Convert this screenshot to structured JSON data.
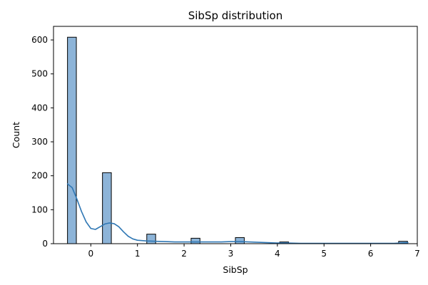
{
  "chart_data": {
    "type": "bar",
    "title": "SibSp distribution",
    "xlabel": "SibSp",
    "ylabel": "Count",
    "xlim": [
      -0.8,
      7.0
    ],
    "ylim": [
      0,
      640
    ],
    "xticks": [
      0,
      1,
      2,
      3,
      4,
      5,
      6,
      7
    ],
    "yticks": [
      0,
      100,
      200,
      300,
      400,
      500,
      600
    ],
    "bins": [
      {
        "x0": -0.5,
        "x1": -0.31,
        "count": 608
      },
      {
        "x0": 0.25,
        "x1": 0.44,
        "count": 209
      },
      {
        "x0": 1.2,
        "x1": 1.39,
        "count": 28
      },
      {
        "x0": 2.15,
        "x1": 2.34,
        "count": 16
      },
      {
        "x0": 3.1,
        "x1": 3.29,
        "count": 18
      },
      {
        "x0": 4.05,
        "x1": 4.24,
        "count": 5
      },
      {
        "x0": 6.6,
        "x1": 6.79,
        "count": 7
      }
    ],
    "kde": {
      "x": [
        -0.5,
        -0.4,
        -0.3,
        -0.2,
        -0.1,
        0.0,
        0.1,
        0.2,
        0.3,
        0.4,
        0.5,
        0.6,
        0.7,
        0.8,
        0.9,
        1.0,
        1.2,
        1.4,
        1.6,
        1.8,
        2.0,
        2.2,
        2.4,
        2.6,
        2.8,
        3.0,
        3.2,
        3.4,
        3.6,
        3.8,
        4.0,
        4.2,
        4.5,
        5.0,
        5.5,
        6.0,
        6.5,
        6.8
      ],
      "y": [
        176,
        165,
        132,
        95,
        64,
        45,
        42,
        50,
        58,
        61,
        59,
        50,
        35,
        22,
        14,
        10,
        8,
        7,
        6,
        5,
        5,
        5,
        5,
        5,
        5,
        6,
        6,
        5,
        4,
        3,
        2,
        2,
        1,
        1,
        1,
        1,
        1,
        3
      ]
    },
    "bar_fill": "#8db4d8",
    "bar_edge": "#000000",
    "line_color": "#2f77b4",
    "grid": false,
    "legend": "none"
  }
}
